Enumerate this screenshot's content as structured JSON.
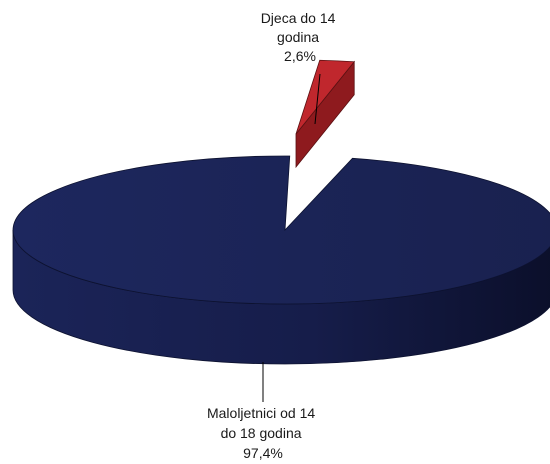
{
  "chart_data": {
    "type": "pie",
    "style": "3d-exploded",
    "slices": [
      {
        "label_lines": [
          "Djeca do 14",
          "godina",
          "2,6%"
        ],
        "value": 2.6,
        "color": "#c0272d"
      },
      {
        "label_lines": [
          "Maloljetnici od 14",
          "do 18 godina",
          "97,4%"
        ],
        "value": 97.4,
        "color": "#1b2458"
      }
    ]
  }
}
